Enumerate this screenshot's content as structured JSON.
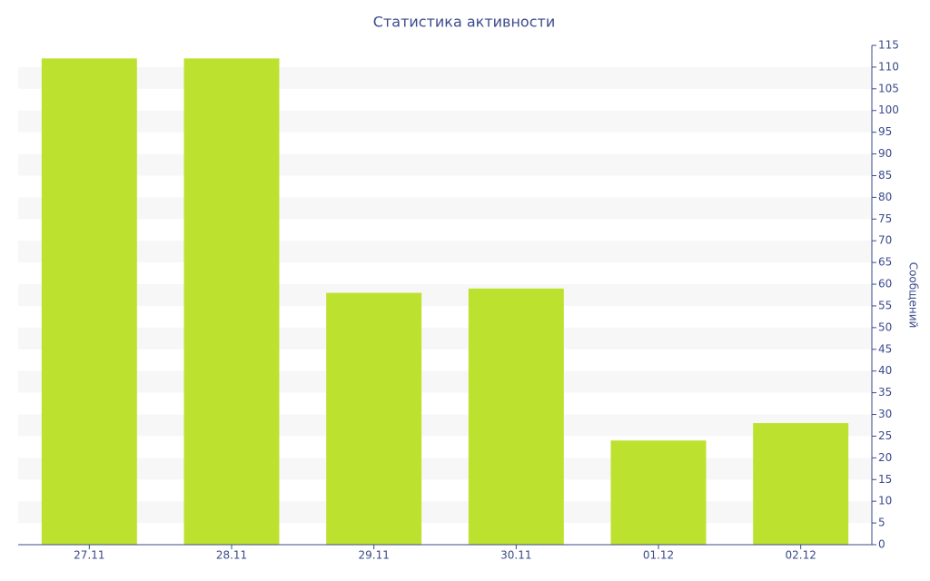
{
  "chart_data": {
    "type": "bar",
    "title": "Статистика активности",
    "y_label": "Сообщений",
    "categories": [
      "27.11",
      "28.11",
      "29.11",
      "30.11",
      "01.12",
      "02.12"
    ],
    "values": [
      112,
      112,
      58,
      59,
      24,
      28
    ],
    "color": "#bde12f",
    "ylim": [
      0,
      115
    ],
    "yticks": [
      0,
      5,
      10,
      15,
      20,
      25,
      30,
      35,
      40,
      45,
      50,
      55,
      60,
      65,
      70,
      75,
      80,
      85,
      90,
      95,
      100,
      105,
      110,
      115
    ],
    "grid": true,
    "y_axis_side": "right"
  }
}
